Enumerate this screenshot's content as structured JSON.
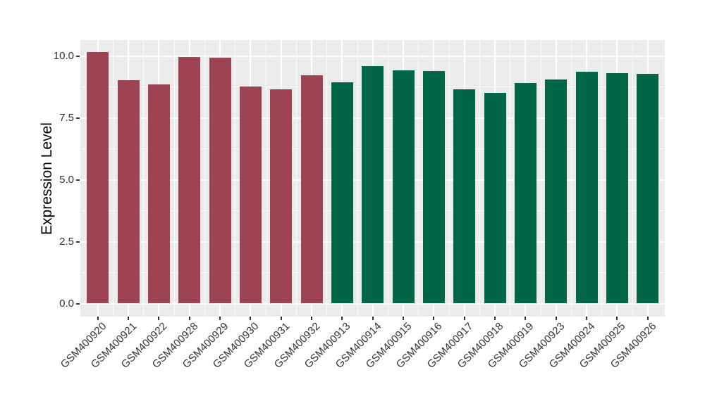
{
  "chart_data": {
    "type": "bar",
    "title": "",
    "xlabel": "",
    "ylabel": "Expression Level",
    "categories": [
      "GSM400920",
      "GSM400921",
      "GSM400922",
      "GSM400928",
      "GSM400929",
      "GSM400930",
      "GSM400931",
      "GSM400932",
      "GSM400913",
      "GSM400914",
      "GSM400915",
      "GSM400916",
      "GSM400917",
      "GSM400918",
      "GSM400919",
      "GSM400923",
      "GSM400924",
      "GSM400925",
      "GSM400926"
    ],
    "values": [
      10.17,
      9.03,
      8.86,
      9.96,
      9.94,
      8.78,
      8.66,
      9.23,
      8.95,
      9.6,
      9.43,
      9.4,
      8.66,
      8.53,
      8.92,
      9.06,
      9.37,
      9.32,
      9.29
    ],
    "bar_colors": [
      "#9E4351",
      "#9E4351",
      "#9E4351",
      "#9E4351",
      "#9E4351",
      "#9E4351",
      "#9E4351",
      "#9E4351",
      "#006647",
      "#006647",
      "#006647",
      "#006647",
      "#006647",
      "#006647",
      "#006647",
      "#006647",
      "#006647",
      "#006647",
      "#006647"
    ],
    "group_colors": {
      "maroon_group": "#9E4351",
      "green_group": "#006647"
    },
    "yticks": {
      "values": [
        0,
        2.5,
        5,
        7.5,
        10
      ],
      "labels": [
        "0.0",
        "2.5",
        "5.0",
        "7.5",
        "10.0"
      ]
    },
    "minor_yticks": [
      1.25,
      3.75,
      6.25,
      8.75
    ],
    "ylim": [
      0,
      10.65
    ],
    "grid": "major and minor, white lines on grey panel",
    "legend_position": "none",
    "colors": {
      "panel_bg": "#EBEBEB",
      "grid": "#FFFFFF",
      "tick_text": "#333333",
      "axis_title_text": "#000000",
      "outer_bg": "#FFFFFF"
    }
  }
}
